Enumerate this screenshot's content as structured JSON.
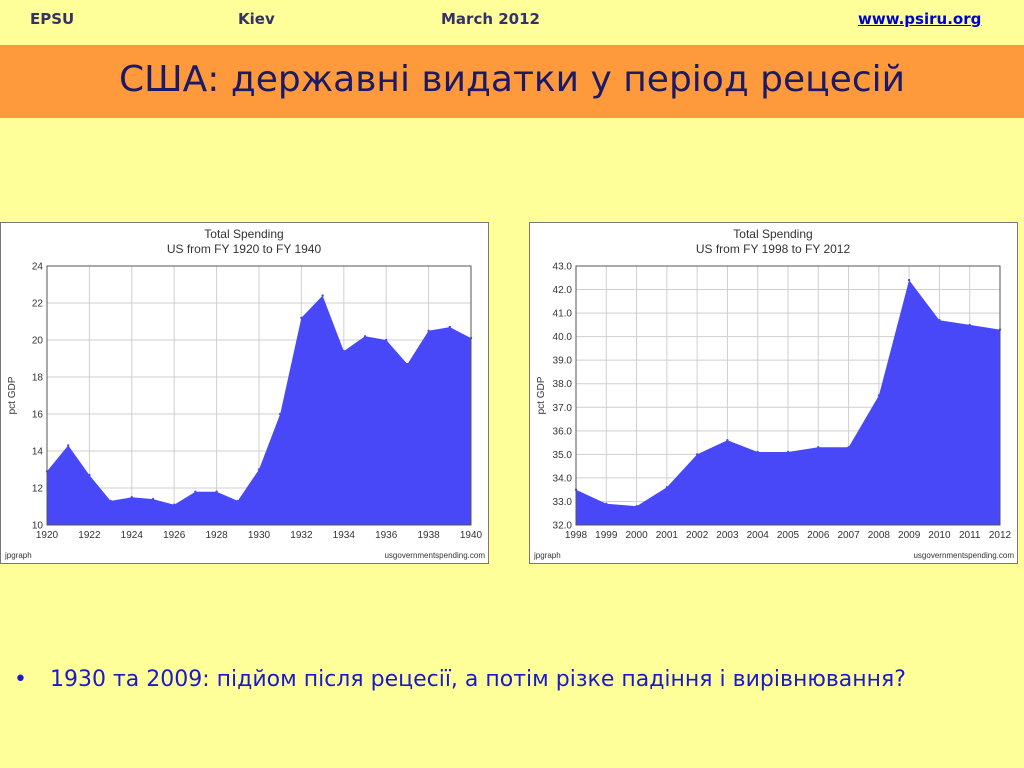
{
  "header": {
    "org": "EPSU",
    "city": "Kiev",
    "date": "March 2012",
    "website": "www.psiru.org"
  },
  "slide": {
    "title": "США: державні видатки у період рецесій",
    "bullet_marker": "•",
    "bullet": "1930 та 2009: підйом після рецесії, а потім різке падіння і вирівнювання?"
  },
  "colors": {
    "fill": "#4848f8",
    "orange_band": "#ff9a3c",
    "background": "#ffff99"
  },
  "chart_data": [
    {
      "type": "area",
      "title": "Total Spending",
      "subtitle": "US from FY 1920 to FY 1940",
      "ylabel": "pct GDP",
      "xlabel": "",
      "footer_left": "jpgraph",
      "footer_right": "usgovernmentspending.com",
      "ylim": [
        10,
        24
      ],
      "xlim": [
        1920,
        1940
      ],
      "yticks": [
        "10",
        "12",
        "14",
        "16",
        "18",
        "20",
        "22",
        "24"
      ],
      "xticks": [
        "1920",
        "1922",
        "1924",
        "1926",
        "1928",
        "1930",
        "1932",
        "1934",
        "1936",
        "1938",
        "1940"
      ],
      "grid": true,
      "x": [
        1920,
        1921,
        1922,
        1923,
        1924,
        1925,
        1926,
        1927,
        1928,
        1929,
        1930,
        1931,
        1932,
        1933,
        1934,
        1935,
        1936,
        1937,
        1938,
        1939,
        1940
      ],
      "values": [
        12.9,
        14.3,
        12.7,
        11.3,
        11.5,
        11.4,
        11.1,
        11.8,
        11.8,
        11.3,
        13.0,
        16.0,
        21.2,
        22.4,
        19.4,
        20.2,
        20.0,
        18.7,
        20.5,
        20.7,
        20.1
      ]
    },
    {
      "type": "area",
      "title": "Total Spending",
      "subtitle": "US from FY 1998 to FY 2012",
      "ylabel": "pct GDP",
      "xlabel": "",
      "footer_left": "jpgraph",
      "footer_right": "usgovernmentspending.com",
      "ylim": [
        32,
        43
      ],
      "xlim": [
        1998,
        2012
      ],
      "yticks": [
        "32.0",
        "33.0",
        "34.0",
        "35.0",
        "36.0",
        "37.0",
        "38.0",
        "39.0",
        "40.0",
        "41.0",
        "42.0",
        "43.0"
      ],
      "xticks": [
        "1998",
        "1999",
        "2000",
        "2001",
        "2002",
        "2003",
        "2004",
        "2005",
        "2006",
        "2007",
        "2008",
        "2009",
        "2010",
        "2011",
        "2012"
      ],
      "grid": true,
      "x": [
        1998,
        1999,
        2000,
        2001,
        2002,
        2003,
        2004,
        2005,
        2006,
        2007,
        2008,
        2009,
        2010,
        2011,
        2012
      ],
      "values": [
        33.5,
        32.9,
        32.8,
        33.6,
        35.0,
        35.6,
        35.1,
        35.1,
        35.3,
        35.3,
        37.5,
        42.4,
        40.7,
        40.5,
        40.3
      ]
    }
  ]
}
